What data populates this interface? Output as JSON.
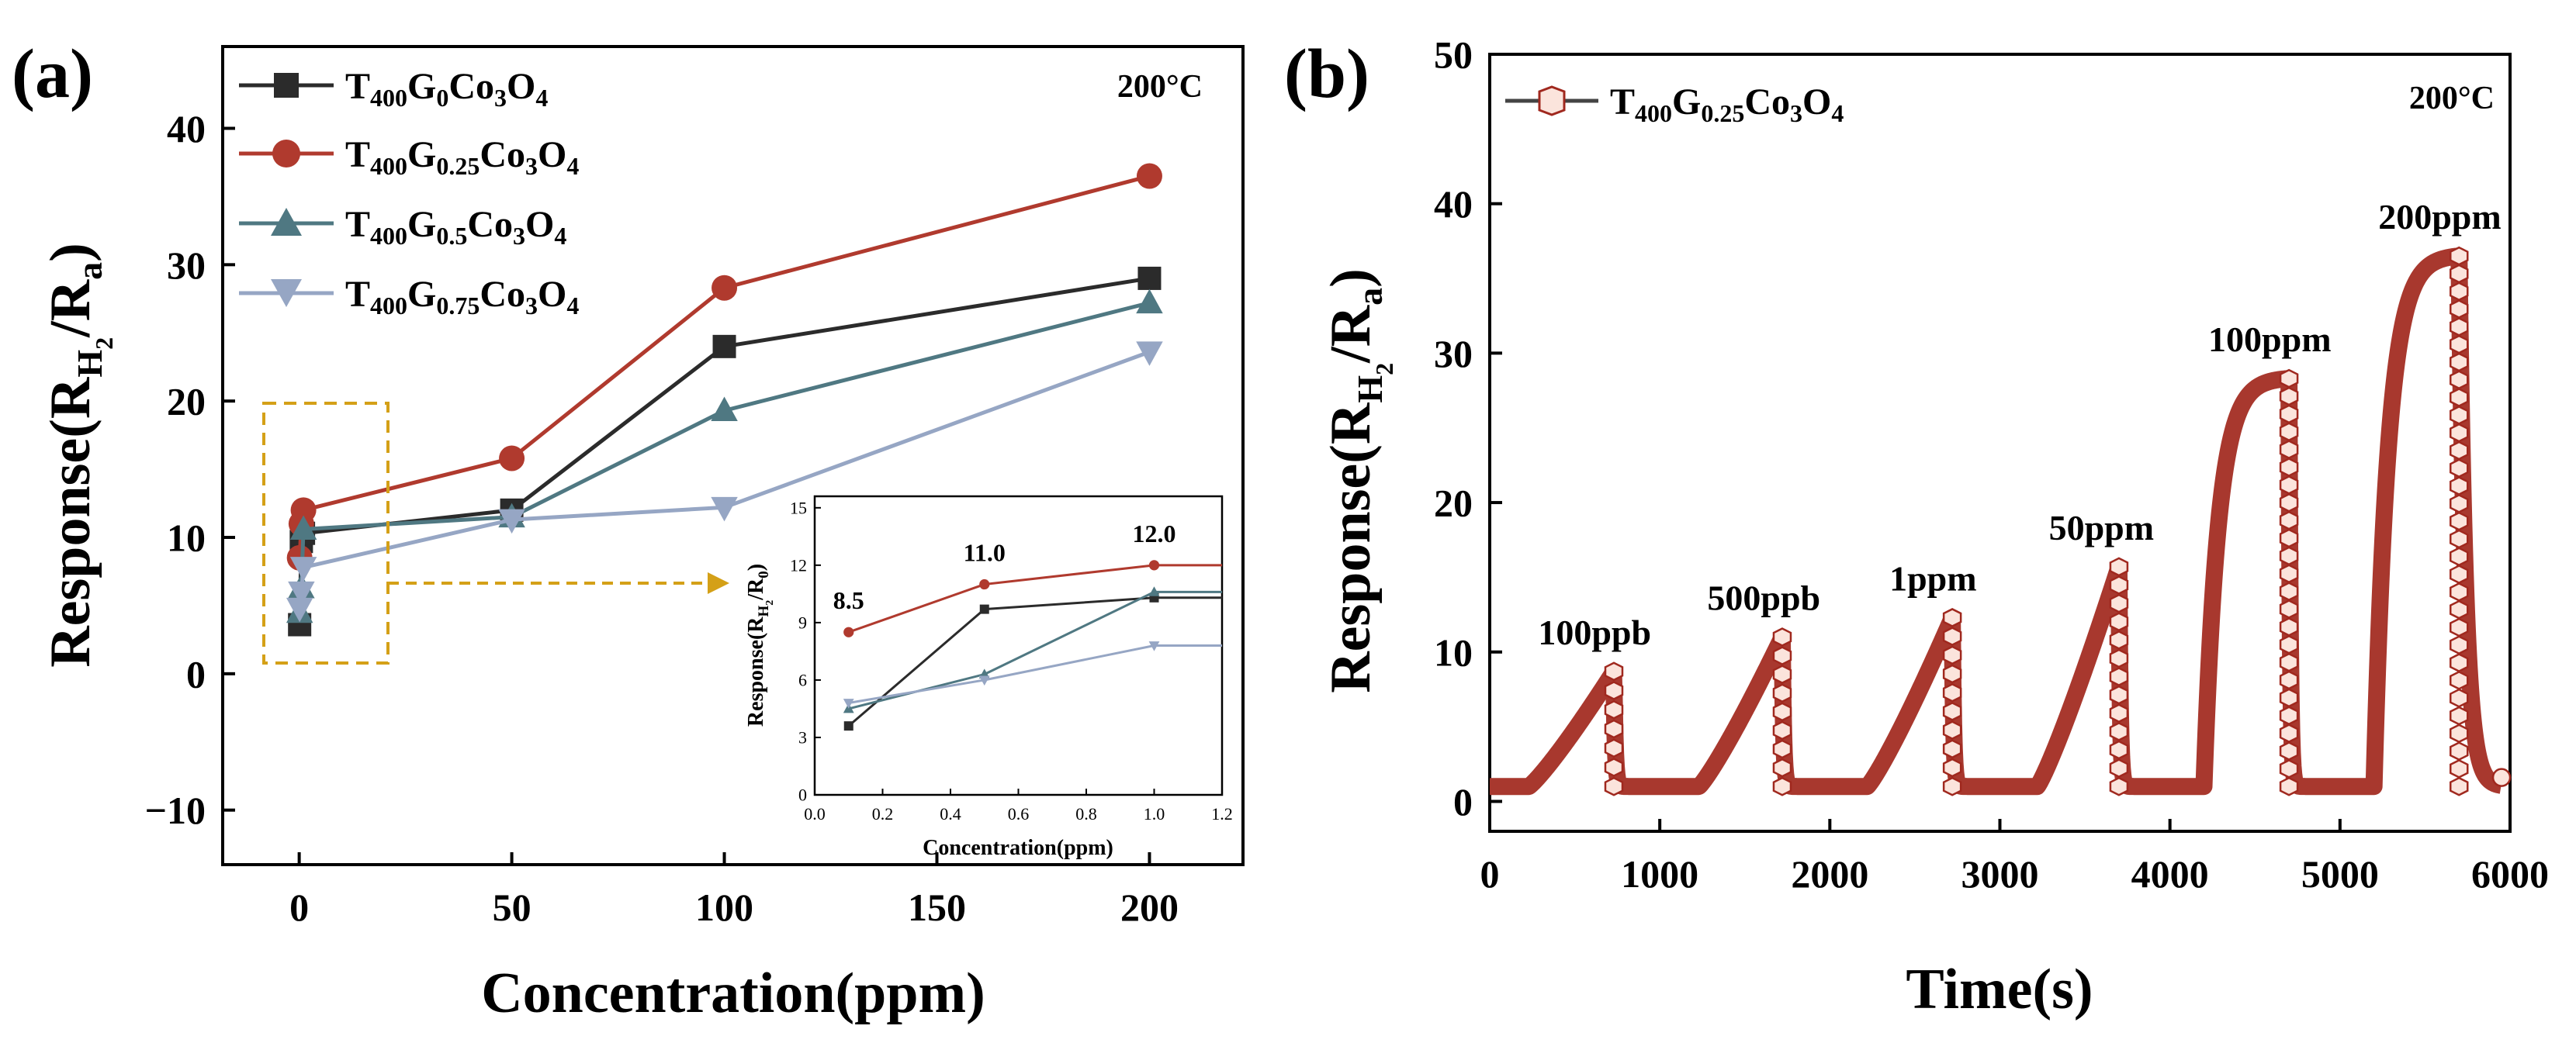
{
  "colors": {
    "s0": "#2b2b2b",
    "s1": "#b03a2e",
    "s2": "#4f7882",
    "s3": "#96a6c4",
    "box": "#d4a017",
    "b_line": "#444444",
    "b_marker_fill": "#fbe4dc",
    "b_marker_edge": "#a0281e"
  },
  "chart_data": [
    {
      "id": "a",
      "panel_label": "(a)",
      "type": "line",
      "annotation": "200°C",
      "xlabel": "Concentration(ppm)",
      "ylabel": "Response(R",
      "ylabel_sub": "H",
      "ylabel_sub2": "2",
      "ylabel_tail": "/R",
      "ylabel_sub3": "a",
      "ylabel_close": ")",
      "xlim": [
        -18,
        222
      ],
      "ylim": [
        -14,
        46
      ],
      "xticks": [
        0,
        50,
        100,
        150,
        200
      ],
      "yticks": [
        -10,
        0,
        10,
        20,
        30,
        40
      ],
      "xtick_labels": [
        "0",
        "50",
        "100",
        "150",
        "200"
      ],
      "ytick_labels": [
        "−10",
        "0",
        "10",
        "20",
        "30",
        "40"
      ],
      "legend": [
        {
          "pre": "T",
          "s1": "400",
          "mid": "G",
          "s2": "0",
          "tail": "Co",
          "s3": "3",
          "tail2": "O",
          "s4": "4"
        },
        {
          "pre": "T",
          "s1": "400",
          "mid": "G",
          "s2": "0.25",
          "tail": "Co",
          "s3": "3",
          "tail2": "O",
          "s4": "4"
        },
        {
          "pre": "T",
          "s1": "400",
          "mid": "G",
          "s2": "0.5",
          "tail": "Co",
          "s3": "3",
          "tail2": "O",
          "s4": "4"
        },
        {
          "pre": "T",
          "s1": "400",
          "mid": "G",
          "s2": "0.75",
          "tail": "Co",
          "s3": "3",
          "tail2": "O",
          "s4": "4"
        }
      ],
      "series": [
        {
          "name": "T400G0Co3O4",
          "marker": "square",
          "x": [
            0.1,
            0.5,
            1,
            50,
            100,
            200
          ],
          "y": [
            3.6,
            9.7,
            10.3,
            12.0,
            24.0,
            29.0
          ]
        },
        {
          "name": "T400G0.25Co3O4",
          "marker": "circle",
          "x": [
            0.1,
            0.5,
            1,
            50,
            100,
            200
          ],
          "y": [
            8.5,
            11.0,
            12.0,
            15.8,
            28.3,
            36.5
          ]
        },
        {
          "name": "T400G0.5Co3O4",
          "marker": "triangle-up",
          "x": [
            0.1,
            0.5,
            1,
            50,
            100,
            200
          ],
          "y": [
            4.5,
            6.3,
            10.6,
            11.5,
            19.3,
            27.2
          ]
        },
        {
          "name": "T400G0.75Co3O4",
          "marker": "triangle-down",
          "x": [
            0.1,
            0.5,
            1,
            50,
            100,
            200
          ],
          "y": [
            4.8,
            6.0,
            7.8,
            11.3,
            12.2,
            23.6
          ]
        }
      ],
      "inset": {
        "type": "line",
        "xlabel": "Concentration(ppm)",
        "ylabel": "Response(R",
        "ylabel_sub": "H",
        "ylabel_sub2": "2",
        "ylabel_tail": "/R",
        "ylabel_sub3": "0",
        "ylabel_close": ")",
        "xlim": [
          0.0,
          1.2
        ],
        "ylim": [
          0,
          15.6
        ],
        "xticks": [
          0.0,
          0.2,
          0.4,
          0.6,
          0.8,
          1.0,
          1.2
        ],
        "yticks": [
          0,
          3,
          6,
          9,
          12,
          15
        ],
        "xtick_labels": [
          "0.0",
          "0.2",
          "0.4",
          "0.6",
          "0.8",
          "1.0",
          "1.2"
        ],
        "ytick_labels": [
          "0",
          "3",
          "6",
          "9",
          "12",
          "15"
        ],
        "annotations": [
          {
            "text": "8.5",
            "x": 0.1,
            "y": 8.5
          },
          {
            "text": "11.0",
            "x": 0.5,
            "y": 11.0
          },
          {
            "text": "12.0",
            "x": 1.0,
            "y": 12.0
          }
        ],
        "series": [
          {
            "name": "T400G0Co3O4",
            "x": [
              0.1,
              0.5,
              1.0,
              1.2
            ],
            "y": [
              3.6,
              9.7,
              10.3,
              10.3
            ]
          },
          {
            "name": "T400G0.25Co3O4",
            "x": [
              0.1,
              0.5,
              1.0,
              1.2
            ],
            "y": [
              8.5,
              11.0,
              12.0,
              12.0
            ]
          },
          {
            "name": "T400G0.5Co3O4",
            "x": [
              0.1,
              0.5,
              1.0,
              1.2
            ],
            "y": [
              4.5,
              6.3,
              10.6,
              10.6
            ]
          },
          {
            "name": "T400G0.75Co3O4",
            "x": [
              0.1,
              0.5,
              1.0,
              1.2
            ],
            "y": [
              4.8,
              6.0,
              7.8,
              7.8
            ]
          }
        ]
      }
    },
    {
      "id": "b",
      "panel_label": "(b)",
      "type": "line",
      "annotation": "200°C",
      "xlabel": "Time(s)",
      "ylabel": "Response(R",
      "ylabel_sub": "H",
      "ylabel_sub2": "2",
      "ylabel_tail": "/R",
      "ylabel_sub3": "a",
      "ylabel_close": ")",
      "xlim": [
        0,
        6000
      ],
      "ylim": [
        -2,
        50
      ],
      "xticks": [
        0,
        1000,
        2000,
        3000,
        4000,
        5000,
        6000
      ],
      "yticks": [
        0,
        10,
        20,
        30,
        40,
        50
      ],
      "xtick_labels": [
        "0",
        "1000",
        "2000",
        "3000",
        "4000",
        "5000",
        "6000"
      ],
      "ytick_labels": [
        "0",
        "10",
        "20",
        "30",
        "40",
        "50"
      ],
      "legend": [
        {
          "pre": "T",
          "s1": "400",
          "mid": "G",
          "s2": "0.25",
          "tail": "Co",
          "s3": "3",
          "tail2": "O",
          "s4": "4"
        }
      ],
      "cycles": [
        {
          "label": "100ppb",
          "on": 230,
          "off": 730,
          "peak": 8.7
        },
        {
          "label": "500ppb",
          "on": 1230,
          "off": 1720,
          "peak": 11.0
        },
        {
          "label": "1ppm",
          "on": 2220,
          "off": 2720,
          "peak": 12.3
        },
        {
          "label": "50ppm",
          "on": 3220,
          "off": 3700,
          "peak": 15.7
        },
        {
          "label": "100ppm",
          "on": 4200,
          "off": 4700,
          "peak": 28.3
        },
        {
          "label": "200ppm",
          "on": 5200,
          "off": 5700,
          "peak": 36.5
        }
      ],
      "baseline": 1.0,
      "end_value": 1.6
    }
  ]
}
